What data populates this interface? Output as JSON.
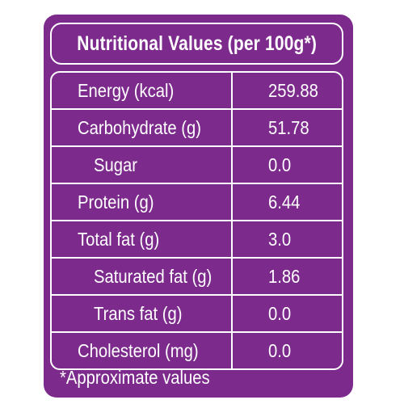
{
  "title": "Nutritional Values (per 100g*)",
  "rows": [
    {
      "label": "Energy (kcal)",
      "value": "259.88",
      "indent": false
    },
    {
      "label": "Carbohydrate (g)",
      "value": "51.78",
      "indent": false
    },
    {
      "label": "Sugar",
      "value": "0.0",
      "indent": true
    },
    {
      "label": "Protein (g)",
      "value": "6.44",
      "indent": false
    },
    {
      "label": "Total fat (g)",
      "value": "3.0",
      "indent": false
    },
    {
      "label": "Saturated fat (g)",
      "value": "1.86",
      "indent": true
    },
    {
      "label": "Trans fat (g)",
      "value": "0.0",
      "indent": true
    },
    {
      "label": "Cholesterol (mg)",
      "value": "0.0",
      "indent": false
    }
  ],
  "footnote": "*Approximate values",
  "colors": {
    "background": "#7d2a8d",
    "text": "#ffffff"
  }
}
